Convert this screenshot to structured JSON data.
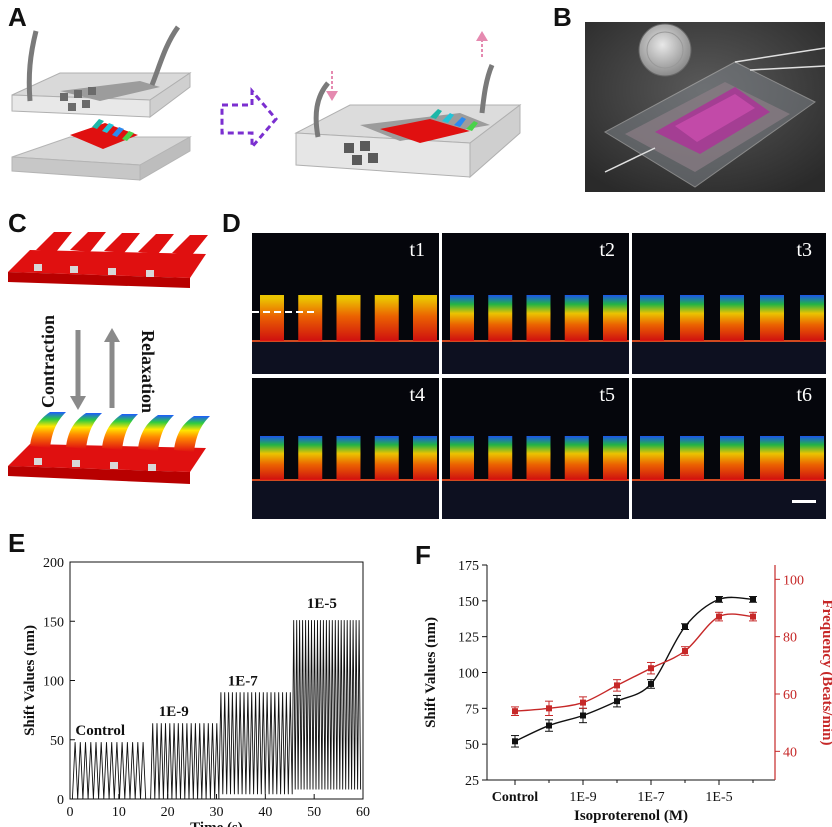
{
  "panels": {
    "a": "A",
    "b": "B",
    "c": "C",
    "d": "D",
    "e": "E",
    "f": "F"
  },
  "panel_c": {
    "contraction": "Contraction",
    "relaxation": "Relaxation"
  },
  "panel_d": {
    "tiles": [
      "t1",
      "t2",
      "t3",
      "t4",
      "t5",
      "t6"
    ]
  },
  "colors": {
    "heart_red": "#e01010",
    "frequency_red": "#c62828",
    "trace": "#111111",
    "purple_arrow": "#7b2fd0",
    "pink_arrow": "#e58ab0"
  },
  "chart_data": [
    {
      "id": "E",
      "type": "line",
      "xlabel": "Time (s)",
      "ylabel": "Shift Values (nm)",
      "xlim": [
        0,
        60
      ],
      "ylim": [
        0,
        200
      ],
      "xticks": [
        0,
        10,
        20,
        30,
        40,
        50,
        60
      ],
      "yticks": [
        0,
        50,
        100,
        150,
        200
      ],
      "segments": [
        {
          "label": "Control",
          "t_start": 0.5,
          "t_end": 15.5,
          "peak": 48,
          "beats": 14
        },
        {
          "label": "1E-9",
          "t_start": 16.5,
          "t_end": 30.5,
          "peak": 64,
          "beats": 16
        },
        {
          "label": "1E-7",
          "t_start": 30.5,
          "t_end": 45.5,
          "peak": 90,
          "beats": 19
        },
        {
          "label": "1E-5",
          "t_start": 45.5,
          "t_end": 59.5,
          "peak": 151,
          "beats": 23
        }
      ]
    },
    {
      "id": "F",
      "type": "line",
      "xlabel": "Isoproterenol (M)",
      "ylabel": "Shift Values (nm)",
      "ylabel_right": "Frequency (Beats/min)",
      "ylim": [
        25,
        175
      ],
      "ylim_right": [
        30,
        105
      ],
      "yticks": [
        25,
        50,
        75,
        100,
        125,
        150,
        175
      ],
      "yticks_right": [
        40,
        60,
        80,
        100
      ],
      "xtick_labels": [
        "Control",
        "1E-9",
        "1E-7",
        "1E-5"
      ],
      "x": [
        0,
        1,
        2,
        3,
        4,
        5,
        6,
        7
      ],
      "series": [
        {
          "name": "Shift Values",
          "axis": "left",
          "color": "#111111",
          "values": [
            52,
            63,
            70,
            80,
            92,
            132,
            151,
            151
          ],
          "errors": [
            4,
            4,
            5,
            4,
            3,
            2,
            2,
            2
          ]
        },
        {
          "name": "Frequency",
          "axis": "right",
          "color": "#c62828",
          "values": [
            54,
            55,
            57,
            63,
            69,
            75,
            87,
            87
          ],
          "errors": [
            1.5,
            2.5,
            2,
            2,
            2,
            1.5,
            1.5,
            1.5
          ]
        }
      ]
    }
  ]
}
